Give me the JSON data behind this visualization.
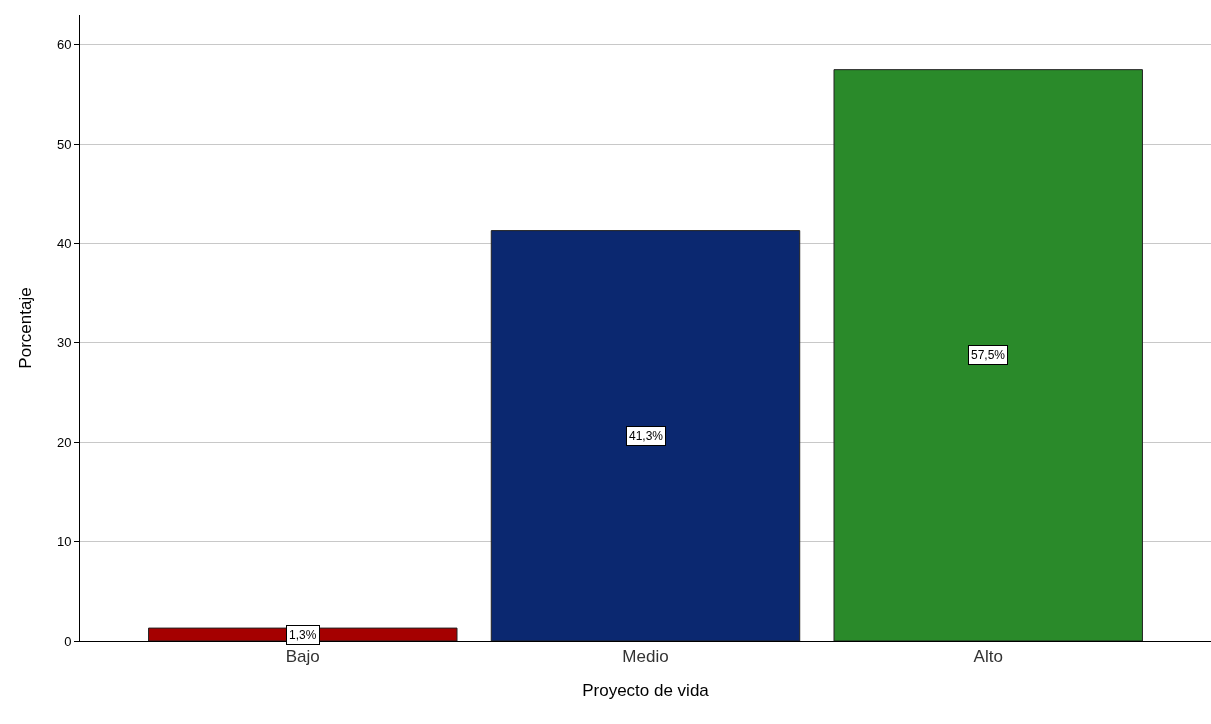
{
  "chart_data": {
    "type": "bar",
    "xlabel": "Proyecto de vida",
    "ylabel": "Porcentaje",
    "categories": [
      "Bajo",
      "Medio",
      "Alto"
    ],
    "values": [
      1.3,
      41.3,
      57.5
    ],
    "colors": [
      "#a50000",
      "#0b2870",
      "#2a8a2a"
    ],
    "value_labels": [
      "1,3%",
      "41,3%",
      "57,5%"
    ],
    "ylim": [
      0,
      63
    ],
    "yticks": [
      0,
      10,
      20,
      30,
      40,
      50,
      60
    ],
    "grid": "y"
  }
}
